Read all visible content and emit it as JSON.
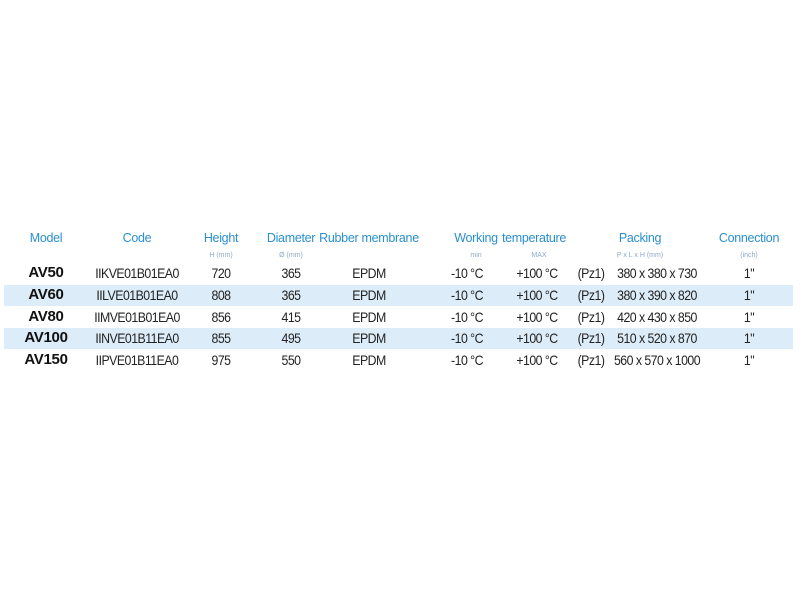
{
  "colors": {
    "header": "#2a8fd0",
    "stripe": "#dcecf8",
    "text": "#222222"
  },
  "headers": {
    "model": "Model",
    "code": "Code",
    "height": "Height",
    "diameter": "Diameter",
    "membrane": "Rubber membrane",
    "working": "Working",
    "temperature": "temperature",
    "packing": "Packing",
    "connection": "Connection"
  },
  "subheaders": {
    "height": "H (mm)",
    "diameter": "Ø (mm)",
    "min": "min",
    "max": "MAX",
    "packing": "P x L x H (mm)",
    "connection": "(inch)"
  },
  "rows": [
    {
      "model": "AV50",
      "code": "IIKVE01B01EA0",
      "height": "720",
      "diameter": "365",
      "membrane": "EPDM",
      "min": "-10 °C",
      "max": "+100 °C",
      "pz": "(Pz1)",
      "packing": "380 x 380 x 730",
      "connection": "1\""
    },
    {
      "model": "AV60",
      "code": "IILVE01B01EA0",
      "height": "808",
      "diameter": "365",
      "membrane": "EPDM",
      "min": "-10 °C",
      "max": "+100 °C",
      "pz": "(Pz1)",
      "packing": "380 x 390 x 820",
      "connection": "1\""
    },
    {
      "model": "AV80",
      "code": "IIMVE01B01EA0",
      "height": "856",
      "diameter": "415",
      "membrane": "EPDM",
      "min": "-10 °C",
      "max": "+100 °C",
      "pz": "(Pz1)",
      "packing": "420 x 430 x 850",
      "connection": "1\""
    },
    {
      "model": "AV100",
      "code": "IINVE01B11EA0",
      "height": "855",
      "diameter": "495",
      "membrane": "EPDM",
      "min": "-10 °C",
      "max": "+100 °C",
      "pz": "(Pz1)",
      "packing": "510 x 520 x 870",
      "connection": "1\""
    },
    {
      "model": "AV150",
      "code": "IIPVE01B11EA0",
      "height": "975",
      "diameter": "550",
      "membrane": "EPDM",
      "min": "-10 °C",
      "max": "+100 °C",
      "pz": "(Pz1)",
      "packing": "560 x 570 x 1000",
      "connection": "1\""
    }
  ]
}
